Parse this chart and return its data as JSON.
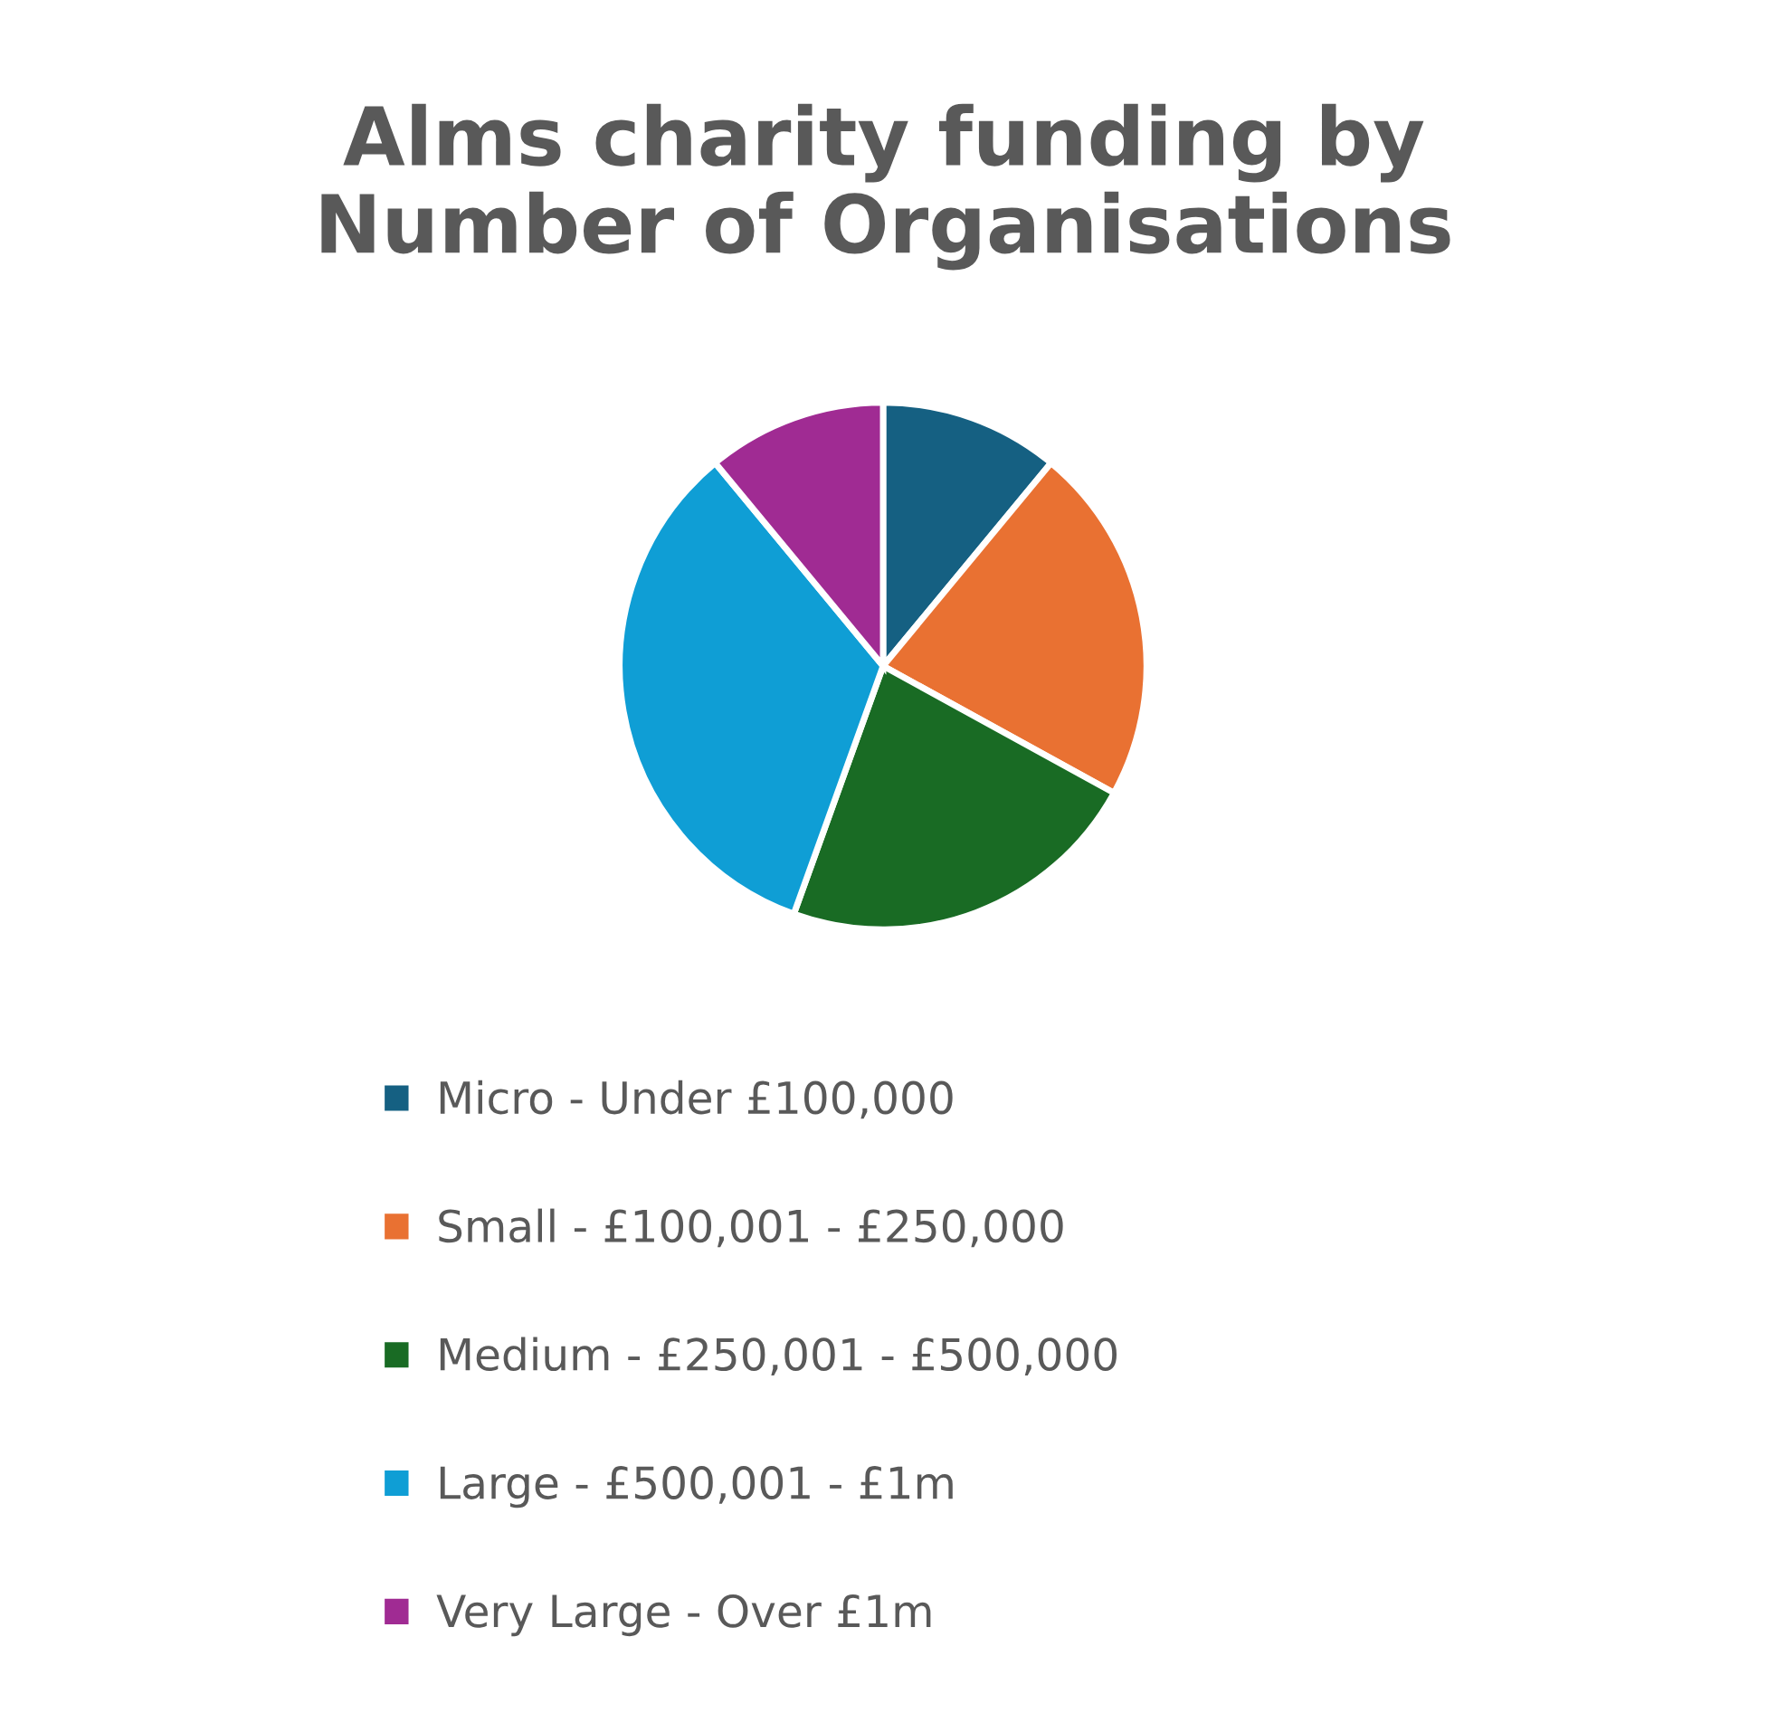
{
  "chart_data": {
    "type": "pie",
    "title": "Alms charity funding by\nNumber of Organisations",
    "categories": [
      "Micro - Under £100,000",
      "Small - £100,001 - £250,000",
      "Medium - £250,001 - £500,000",
      "Large - £500,001 - £1m",
      "Very Large - Over £1m"
    ],
    "values": [
      11,
      22,
      22.5,
      33.5,
      11
    ],
    "colors": [
      "#156082",
      "#e97132",
      "#196b24",
      "#0f9ed5",
      "#a02b93"
    ],
    "legend": "bottom"
  }
}
